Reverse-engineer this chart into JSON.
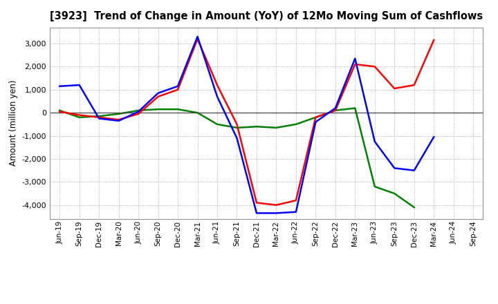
{
  "title": "[3923]  Trend of Change in Amount (YoY) of 12Mo Moving Sum of Cashflows",
  "ylabel": "Amount (million yen)",
  "x_labels": [
    "Jun-19",
    "Sep-19",
    "Dec-19",
    "Mar-20",
    "Jun-20",
    "Sep-20",
    "Dec-20",
    "Mar-21",
    "Jun-21",
    "Sep-21",
    "Dec-21",
    "Mar-22",
    "Jun-22",
    "Sep-22",
    "Dec-22",
    "Mar-23",
    "Jun-23",
    "Sep-23",
    "Dec-23",
    "Mar-24",
    "Jun-24",
    "Sep-24"
  ],
  "operating": [
    50,
    -100,
    -200,
    -300,
    -50,
    700,
    1000,
    3200,
    1200,
    -500,
    -3900,
    -4000,
    -3800,
    -200,
    100,
    2100,
    2000,
    1050,
    1200,
    3150,
    null,
    null
  ],
  "investing": [
    100,
    -200,
    -150,
    -50,
    100,
    150,
    150,
    0,
    -500,
    -650,
    -600,
    -650,
    -500,
    -200,
    100,
    200,
    -3200,
    -3500,
    -4100,
    null,
    null,
    null
  ],
  "free": [
    1150,
    1200,
    -250,
    -350,
    50,
    850,
    1150,
    3300,
    700,
    -1100,
    -4350,
    -4350,
    -4300,
    -400,
    200,
    2350,
    -1250,
    -2400,
    -2500,
    -1050,
    null,
    null
  ],
  "operating_color": "#ff0000",
  "investing_color": "#008000",
  "free_color": "#0000ff",
  "ylim": [
    -4600,
    3700
  ],
  "yticks": [
    -4000,
    -3000,
    -2000,
    -1000,
    0,
    1000,
    2000,
    3000
  ],
  "bg_color": "#ffffff",
  "grid_color": "#999999"
}
